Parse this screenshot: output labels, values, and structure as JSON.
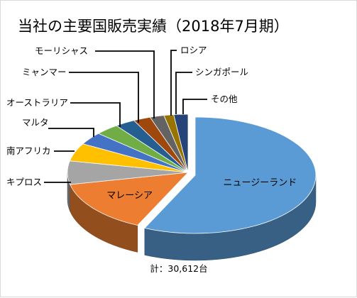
{
  "chart_data": {
    "type": "pie",
    "style": "3d-exploded",
    "title": "当社の主要国販売実績（2018年7月期）",
    "total_label": "計：30,612台",
    "unit": "台",
    "slices": [
      {
        "name": "ニュージーランド",
        "value": 17410,
        "color": "#5b9bd5",
        "label_position": "inside"
      },
      {
        "name": "マレーシア",
        "value": 4530,
        "color": "#ed7d31",
        "label_position": "inside"
      },
      {
        "name": "キプロス",
        "value": 1990,
        "color": "#a5a5a5",
        "label_position": "outside"
      },
      {
        "name": "南アフリカ",
        "value": 1530,
        "color": "#ffc000",
        "label_position": "outside"
      },
      {
        "name": "マルタ",
        "value": 1070,
        "color": "#4472c4",
        "label_position": "outside"
      },
      {
        "name": "オーストラリア",
        "value": 980,
        "color": "#70ad47",
        "label_position": "outside"
      },
      {
        "name": "ミャンマー",
        "value": 830,
        "color": "#255e91",
        "label_position": "outside"
      },
      {
        "name": "モーリシャス",
        "value": 710,
        "color": "#9e480e",
        "label_position": "outside"
      },
      {
        "name": "ロシア",
        "value": 580,
        "color": "#636363",
        "label_position": "outside"
      },
      {
        "name": "シンガポール",
        "value": 400,
        "color": "#997300",
        "label_position": "outside"
      },
      {
        "name": "その他",
        "value": 582,
        "color": "#264478",
        "label_position": "outside"
      }
    ]
  }
}
